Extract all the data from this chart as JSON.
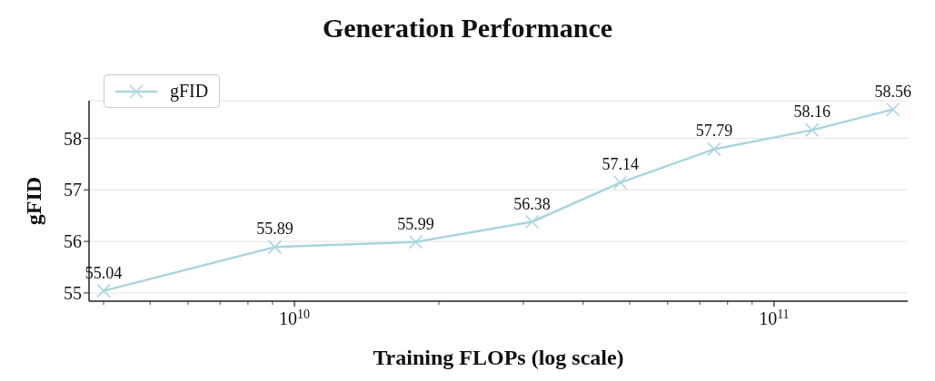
{
  "chart_data": {
    "type": "line",
    "title": "Generation Performance",
    "xlabel": "Training FLOPs (log scale)",
    "ylabel": "gFID",
    "x": [
      4000000000.0,
      9100000000.0,
      17900000000.0,
      31300000000.0,
      47800000000.0,
      75000000000.0,
      120000000000.0,
      177000000000.0
    ],
    "series": [
      {
        "name": "gFID",
        "color": "#a8d5df",
        "values": [
          55.04,
          55.89,
          55.99,
          56.38,
          57.14,
          57.79,
          58.16,
          58.56
        ]
      }
    ],
    "log": "x",
    "xlim": [
      3730000000.0,
      190000000000.0
    ],
    "ylim": [
      54.84,
      58.73
    ],
    "xticks": [
      {
        "value": 4000000000.0,
        "label": null
      },
      {
        "value": 5000000000.0,
        "label": null
      },
      {
        "value": 6000000000.0,
        "label": null
      },
      {
        "value": 7000000000.0,
        "label": null
      },
      {
        "value": 8000000000.0,
        "label": null
      },
      {
        "value": 9000000000.0,
        "label": null
      },
      {
        "value": 10000000000.0,
        "label": "10$^{10}$"
      },
      {
        "value": 20000000000.0,
        "label": null
      },
      {
        "value": 30000000000.0,
        "label": null
      },
      {
        "value": 40000000000.0,
        "label": null
      },
      {
        "value": 50000000000.0,
        "label": null
      },
      {
        "value": 60000000000.0,
        "label": null
      },
      {
        "value": 70000000000.0,
        "label": null
      },
      {
        "value": 80000000000.0,
        "label": null
      },
      {
        "value": 90000000000.0,
        "label": null
      },
      {
        "value": 100000000000.0,
        "label": "10$^{11}$"
      }
    ],
    "yticks": [
      55,
      56,
      57,
      58
    ],
    "grid": "y",
    "legend": "top left",
    "marker": "cross",
    "line_style": "solid",
    "data_labels": true
  }
}
